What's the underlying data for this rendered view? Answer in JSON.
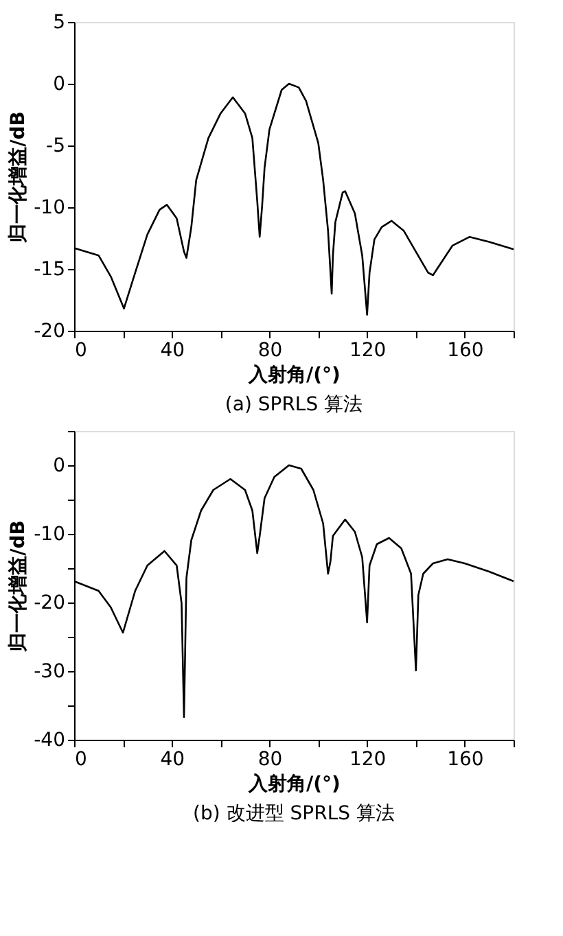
{
  "chart_data": [
    {
      "type": "line",
      "title": "(a)  SPRLS 算法",
      "xlabel": "入射角/(°)",
      "ylabel": "归一化增益/dB",
      "grid": false,
      "marker": "none",
      "line_style": "solid",
      "xlim": [
        0,
        180
      ],
      "xticks": [
        0,
        {
          "value": 20,
          "label": null
        },
        40,
        {
          "value": 60,
          "label": null
        },
        80,
        {
          "value": 100,
          "label": null
        },
        120,
        {
          "value": 140,
          "label": null
        },
        160,
        {
          "value": 180,
          "label": null
        }
      ],
      "ylim": [
        -20,
        5
      ],
      "yticks": [
        -20,
        -15,
        -10,
        -5,
        0,
        5
      ],
      "series": [
        {
          "color": "#000000",
          "x": [
            0,
            10,
            15,
            20,
            20.4,
            25,
            30,
            35,
            38,
            42,
            45,
            46,
            48,
            50,
            55,
            60,
            65,
            70,
            73,
            75,
            76,
            77,
            78,
            80,
            85,
            88,
            92,
            95,
            100,
            102,
            104,
            105,
            105.5,
            106,
            107,
            110,
            111,
            115,
            118,
            120,
            121,
            123,
            126,
            130,
            135,
            140,
            145,
            147,
            150,
            155,
            162,
            170,
            180
          ],
          "values": [
            -13.3,
            -13.9,
            -15.6,
            -18.0,
            -18.2,
            -15.3,
            -12.2,
            -10.2,
            -9.8,
            -10.9,
            -13.6,
            -14.1,
            -11.6,
            -7.8,
            -4.4,
            -2.4,
            -1.1,
            -2.4,
            -4.4,
            -9.5,
            -12.4,
            -9.9,
            -6.8,
            -3.7,
            -0.5,
            0,
            -0.3,
            -1.4,
            -4.8,
            -7.8,
            -11.9,
            -15.3,
            -17.0,
            -13.9,
            -11.2,
            -8.8,
            -8.7,
            -10.5,
            -13.9,
            -18.7,
            -15.3,
            -12.6,
            -11.6,
            -11.1,
            -11.9,
            -13.6,
            -15.3,
            -15.5,
            -14.6,
            -13.1,
            -12.4,
            -12.8,
            -13.4
          ]
        }
      ]
    },
    {
      "type": "line",
      "title": "(b)  改进型 SPRLS 算法",
      "xlabel": "入射角/(°)",
      "ylabel": "归一化增益/dB",
      "grid": false,
      "marker": "none",
      "line_style": "solid",
      "xlim": [
        0,
        180
      ],
      "xticks": [
        0,
        {
          "value": 20,
          "label": null
        },
        40,
        {
          "value": 60,
          "label": null
        },
        80,
        {
          "value": 100,
          "label": null
        },
        120,
        {
          "value": 140,
          "label": null
        },
        160,
        {
          "value": 180,
          "label": null
        }
      ],
      "ylim": [
        -40,
        5
      ],
      "yticks": [
        -40,
        {
          "value": -35,
          "label": null
        },
        -30,
        {
          "value": -25,
          "label": null
        },
        -20,
        {
          "value": -15,
          "label": null
        },
        -10,
        {
          "value": -5,
          "label": null
        },
        0,
        {
          "value": 5,
          "label": null
        }
      ],
      "series": [
        {
          "color": "#000000",
          "x": [
            0,
            10,
            15,
            20,
            25,
            30,
            37,
            42,
            44,
            45,
            46,
            48,
            52,
            57,
            64,
            70,
            73,
            75,
            76,
            78,
            82,
            88,
            93,
            98,
            102,
            104,
            105,
            106,
            111,
            115,
            118,
            120,
            121,
            124,
            129,
            134,
            138,
            140,
            141,
            143,
            147,
            153,
            160,
            170,
            180
          ],
          "values": [
            -16.9,
            -18.3,
            -20.7,
            -24.4,
            -18.3,
            -14.6,
            -12.5,
            -14.6,
            -20.1,
            -36.7,
            -16.4,
            -10.9,
            -6.6,
            -3.6,
            -2.0,
            -3.6,
            -6.6,
            -12.8,
            -10.3,
            -4.8,
            -1.7,
            0,
            -0.5,
            -3.6,
            -8.5,
            -15.8,
            -14.0,
            -10.3,
            -7.9,
            -9.7,
            -13.4,
            -22.9,
            -14.6,
            -11.5,
            -10.6,
            -12.1,
            -15.8,
            -29.9,
            -18.9,
            -15.8,
            -14.3,
            -13.7,
            -14.3,
            -15.5,
            -16.9
          ]
        }
      ]
    }
  ]
}
